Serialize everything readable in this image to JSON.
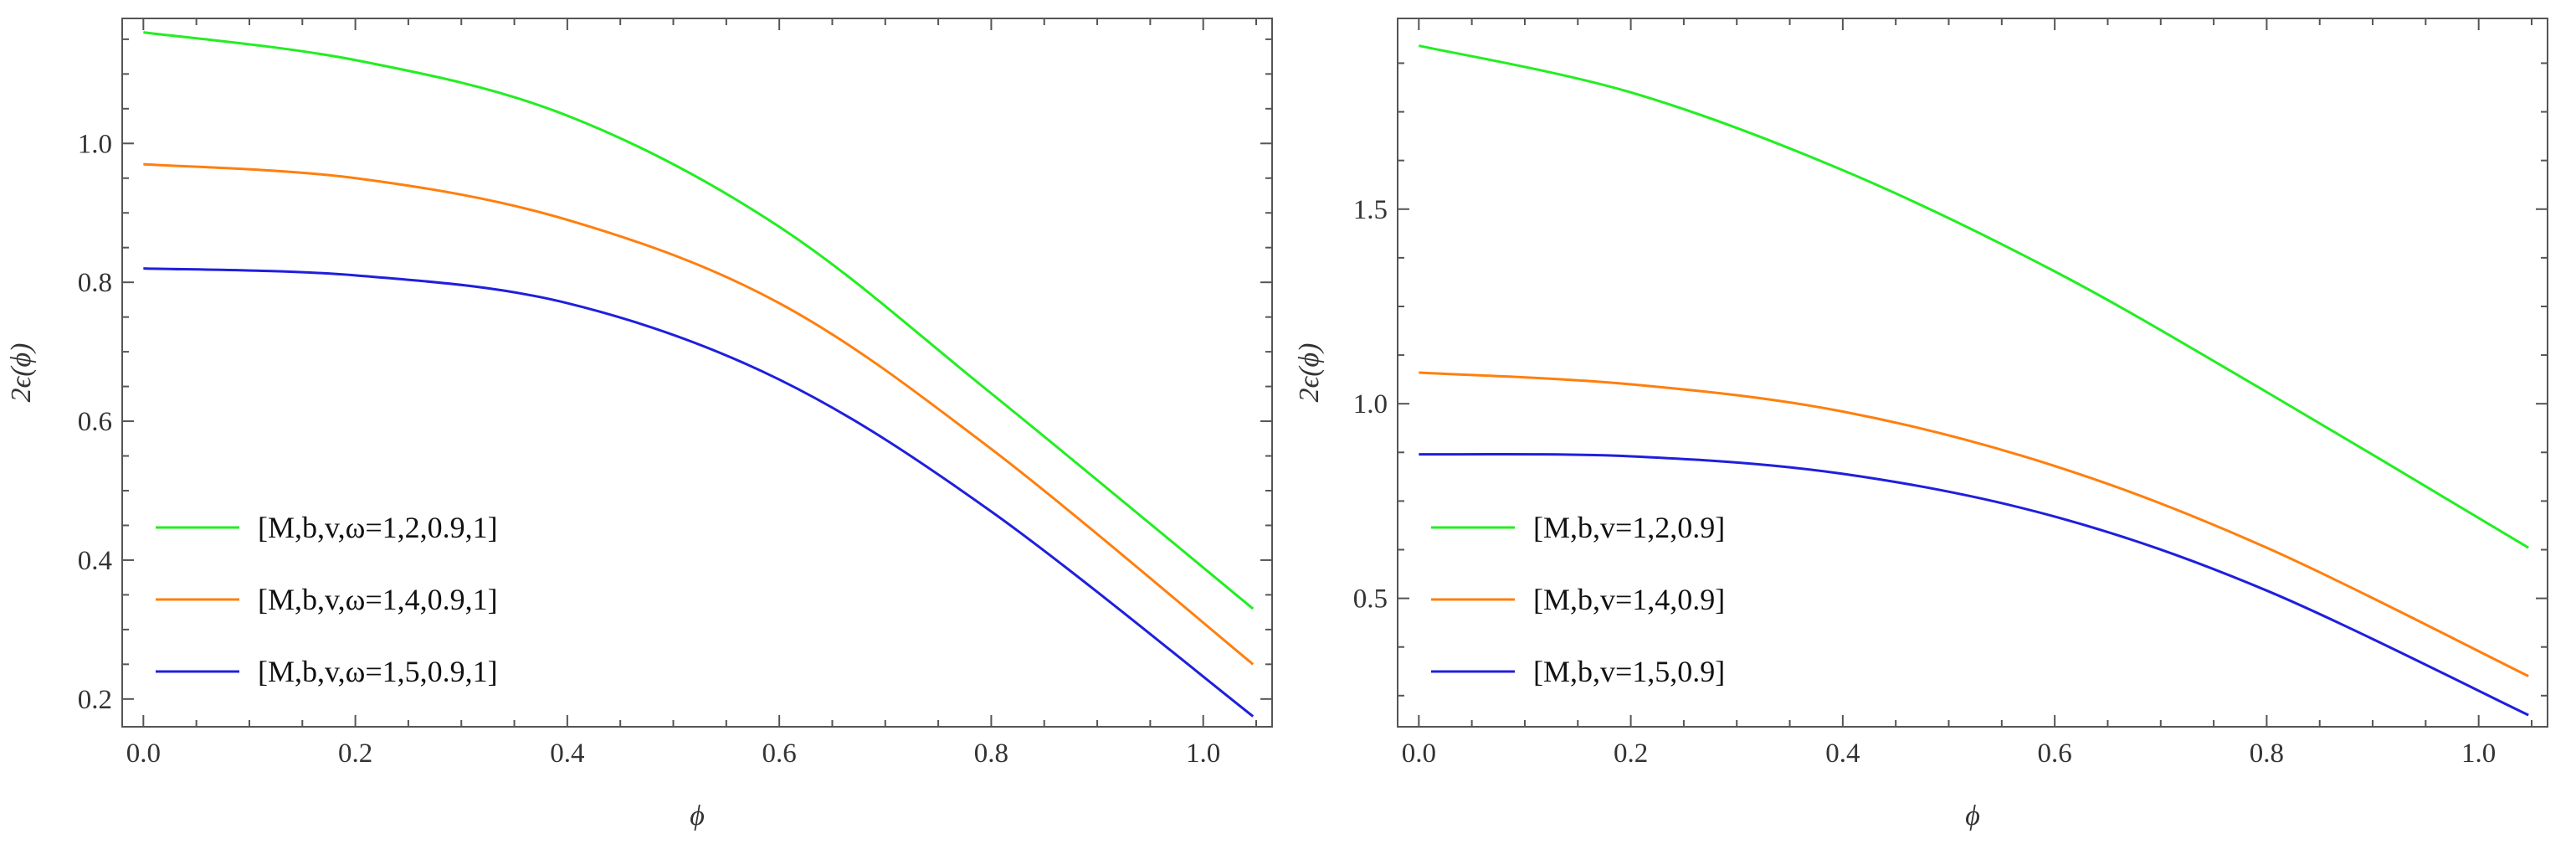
{
  "chart_data": [
    {
      "type": "line",
      "title": "",
      "xlabel": "ϕ",
      "ylabel": "2ϵ(ϕ)",
      "xlim": [
        -0.02,
        1.065
      ],
      "ylim": [
        0.16,
        1.18
      ],
      "xticks": [
        "0.0",
        "0.2",
        "0.4",
        "0.6",
        "0.8",
        "1.0"
      ],
      "yticks": [
        "0.2",
        "0.4",
        "0.6",
        "0.8",
        "1.0"
      ],
      "legend_position": "lower-left",
      "series": [
        {
          "name": "[M,b,v,ω=1,2,0.9,1]",
          "color": "#22ee22",
          "x": [
            0,
            0.2,
            0.4,
            0.6,
            0.8,
            1.047
          ],
          "y": [
            1.16,
            1.12,
            1.04,
            0.88,
            0.64,
            0.33
          ]
        },
        {
          "name": "[M,b,v,ω=1,4,0.9,1]",
          "color": "#ff7f0e",
          "x": [
            0,
            0.2,
            0.4,
            0.6,
            0.8,
            1.047
          ],
          "y": [
            0.97,
            0.95,
            0.89,
            0.77,
            0.56,
            0.25
          ]
        },
        {
          "name": "[M,b,v,ω=1,5,0.9,1]",
          "color": "#1f1fdd",
          "x": [
            0,
            0.2,
            0.4,
            0.6,
            0.8,
            1.047
          ],
          "y": [
            0.82,
            0.81,
            0.77,
            0.66,
            0.47,
            0.175
          ]
        }
      ]
    },
    {
      "type": "line",
      "title": "",
      "xlabel": "ϕ",
      "ylabel": "2ϵ(ϕ)",
      "xlim": [
        -0.02,
        1.065
      ],
      "ylim": [
        0.17,
        1.99
      ],
      "xticks": [
        "0.0",
        "0.2",
        "0.4",
        "0.6",
        "0.8",
        "1.0"
      ],
      "yticks": [
        "0.5",
        "1.0",
        "1.5"
      ],
      "legend_position": "lower-left",
      "series": [
        {
          "name": "[M,b,v=1,2,0.9]",
          "color": "#22ee22",
          "x": [
            0,
            0.2,
            0.4,
            0.6,
            0.8,
            1.047
          ],
          "y": [
            1.92,
            1.8,
            1.6,
            1.34,
            1.03,
            0.63
          ]
        },
        {
          "name": "[M,b,v=1,4,0.9]",
          "color": "#ff7f0e",
          "x": [
            0,
            0.2,
            0.4,
            0.6,
            0.8,
            1.047
          ],
          "y": [
            1.08,
            1.05,
            0.98,
            0.84,
            0.63,
            0.3
          ]
        },
        {
          "name": "[M,b,v=1,5,0.9]",
          "color": "#1f1fdd",
          "x": [
            0,
            0.2,
            0.4,
            0.6,
            0.8,
            1.047
          ],
          "y": [
            0.87,
            0.865,
            0.82,
            0.71,
            0.52,
            0.2
          ]
        }
      ]
    }
  ]
}
